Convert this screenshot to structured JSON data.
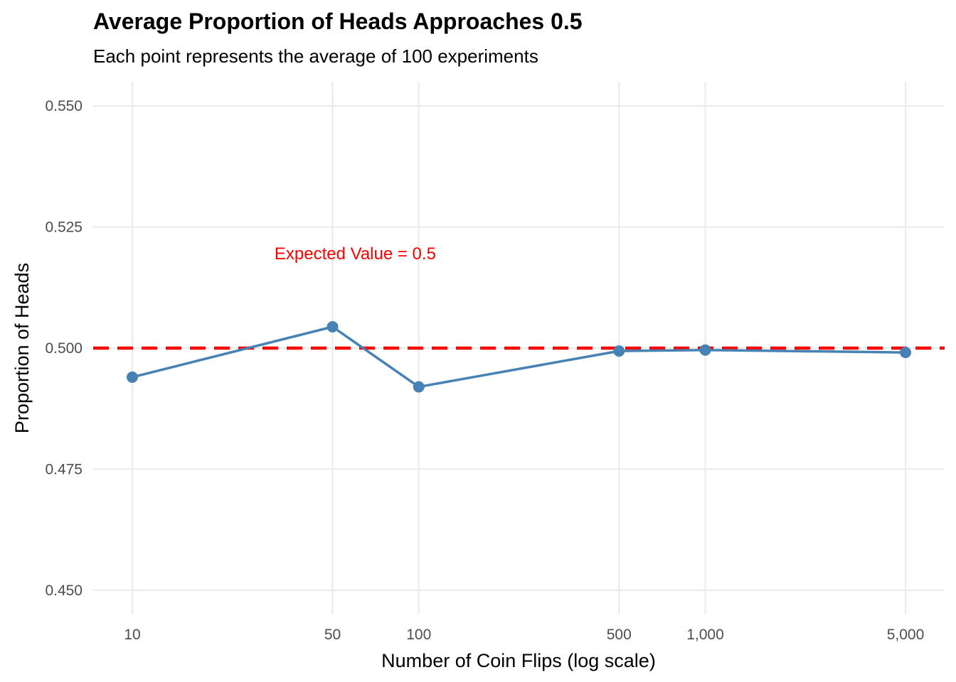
{
  "chart_data": {
    "type": "line",
    "title": "Average Proportion of Heads Approaches 0.5",
    "subtitle": "Each point represents the average of 100 experiments",
    "xlabel": "Number of Coin Flips (log scale)",
    "ylabel": "Proportion of Heads",
    "x_scale": "log10",
    "x": [
      10,
      50,
      100,
      500,
      1000,
      5000
    ],
    "x_tick_labels": [
      "10",
      "50",
      "100",
      "500",
      "1,000",
      "5,000"
    ],
    "series": [
      {
        "values": [
          0.494,
          0.5044,
          0.492,
          0.4994,
          0.4996,
          0.4991
        ],
        "color": "#4682B4"
      }
    ],
    "ylim": [
      0.445,
      0.555
    ],
    "y_ticks": [
      0.45,
      0.475,
      0.5,
      0.525,
      0.55
    ],
    "y_tick_labels": [
      "0.450",
      "0.475",
      "0.500",
      "0.525",
      "0.550"
    ],
    "reference_line": {
      "y": 0.5,
      "color": "#FF0000",
      "style": "dashed"
    },
    "annotation": {
      "text": "Expected Value = 0.5",
      "x": 60,
      "y": 0.5195,
      "color": "#FF0000"
    },
    "grid": true,
    "legend": "none",
    "colors": {
      "gridline": "#EBEBEB",
      "tick_text": "#4D4D4D"
    }
  }
}
